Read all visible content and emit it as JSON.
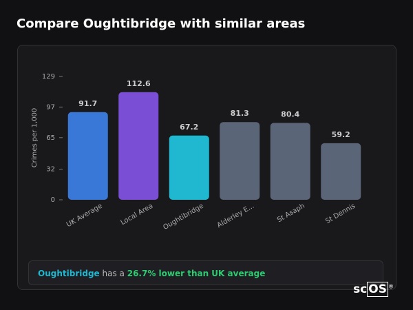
{
  "header": {
    "title": "Compare Oughtibridge with similar areas"
  },
  "chart_data": {
    "type": "bar",
    "y_label": "Crimes per 1,000",
    "categories": [
      "UK Average",
      "Local Area",
      "Oughtibridge",
      "Alderley E...",
      "St Asaph",
      "St Dennis"
    ],
    "values": [
      91.7,
      112.6,
      67.2,
      81.3,
      80.4,
      59.2
    ],
    "colors": [
      "#3a78d8",
      "#7a4fd6",
      "#20b8d0",
      "#5b6578",
      "#5b6578",
      "#5b6578"
    ],
    "ylim": [
      0,
      129
    ],
    "yticks": [
      0,
      32,
      65,
      97,
      129
    ],
    "grid": false
  },
  "summary": {
    "area": "Oughtibridge",
    "connector": "has a",
    "highlight": "26.7% lower than UK average"
  },
  "logo": {
    "prefix": "sc",
    "boxed": "OS",
    "mark": "®"
  }
}
